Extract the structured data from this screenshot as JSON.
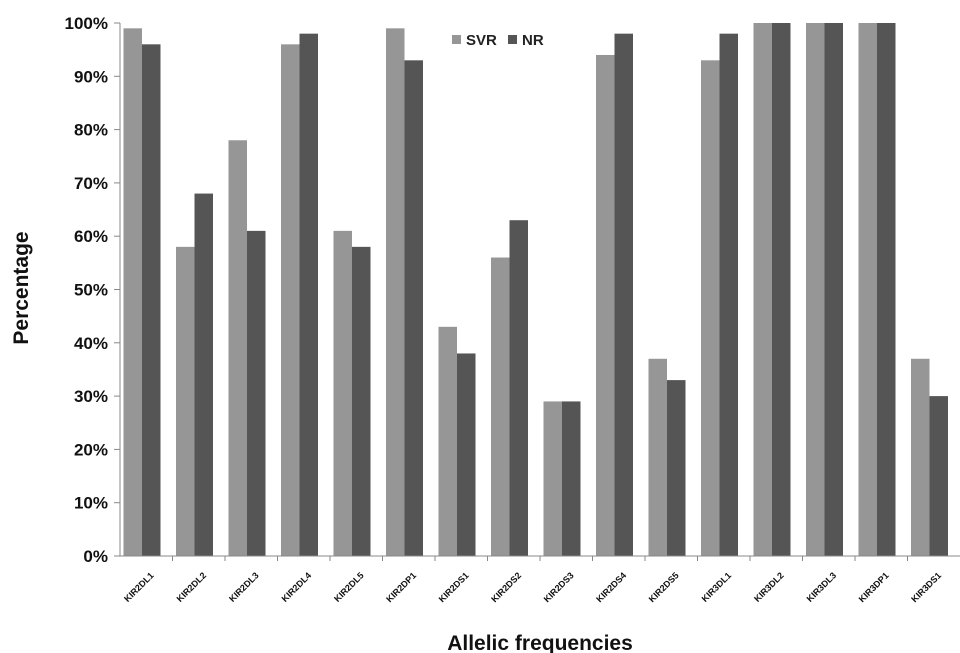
{
  "chart_data": {
    "type": "bar",
    "title": "",
    "xlabel": "Allelic frequencies",
    "ylabel": "Percentage",
    "ylim": [
      0,
      100
    ],
    "yticks": [
      0,
      10,
      20,
      30,
      40,
      50,
      60,
      70,
      80,
      90,
      100
    ],
    "ytick_suffix": "%",
    "grid": false,
    "legend_position": "top-center",
    "categories": [
      "KIR2DL1",
      "KIR2DL2",
      "KIR2DL3",
      "KIR2DL4",
      "KIR2DL5",
      "KIR2DP1",
      "KIR2DS1",
      "KIR2DS2",
      "KIR2DS3",
      "KIR2DS4",
      "KIR2DS5",
      "KIR3DL1",
      "KIR3DL2",
      "KIR3DL3",
      "KIR3DP1",
      "KIR3DS1"
    ],
    "series": [
      {
        "name": "SVR",
        "color": "#969696",
        "values": [
          99,
          58,
          78,
          96,
          61,
          99,
          43,
          56,
          29,
          94,
          37,
          93,
          100,
          100,
          100,
          37
        ]
      },
      {
        "name": "NR",
        "color": "#555555",
        "values": [
          96,
          68,
          61,
          98,
          58,
          93,
          38,
          63,
          29,
          98,
          33,
          98,
          100,
          100,
          100,
          30
        ]
      }
    ]
  }
}
